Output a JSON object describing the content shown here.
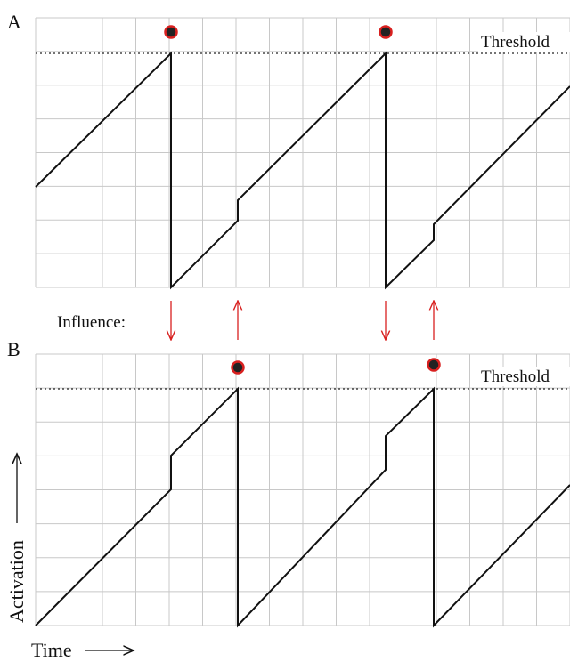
{
  "panels": [
    {
      "label": "A",
      "threshold": "Threshold"
    },
    {
      "label": "B",
      "threshold": "Threshold"
    }
  ],
  "influence": "Influence:",
  "y_axis": "Activation",
  "x_axis": "Time"
}
